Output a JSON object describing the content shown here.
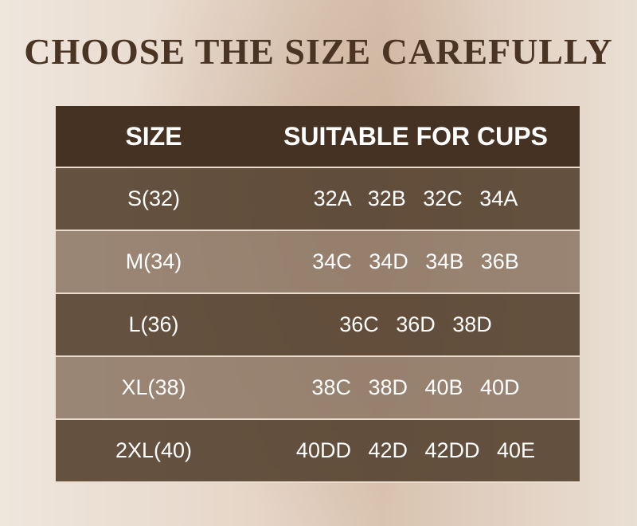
{
  "title": "CHOOSE THE SIZE CAREFULLY",
  "table": {
    "headers": [
      "SIZE",
      "SUITABLE FOR CUPS"
    ],
    "rows": [
      {
        "size": "S(32)",
        "cups": "32A 32B 32C 34A"
      },
      {
        "size": "M(34)",
        "cups": "34C 34D 34B 36B"
      },
      {
        "size": "L(36)",
        "cups": "36C 36D 38D"
      },
      {
        "size": "XL(38)",
        "cups": "38C 38D 40B 40D"
      },
      {
        "size": "2XL(40)",
        "cups": "40DD 42D 42DD 40E"
      }
    ]
  },
  "colors": {
    "header": "#463222",
    "title": "#4a3524",
    "row_dark": "#5e4a38",
    "row_light": "#8f7a68"
  }
}
